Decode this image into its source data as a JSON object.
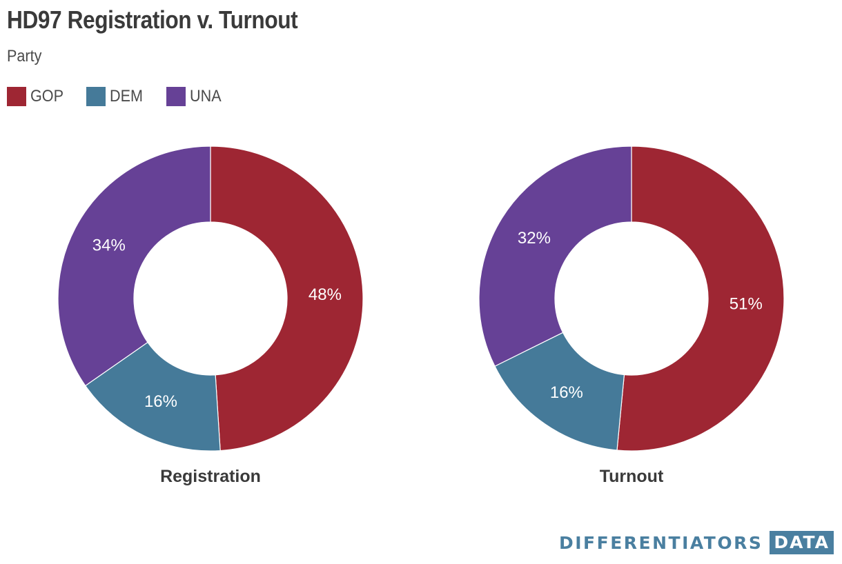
{
  "title": "HD97 Registration v. Turnout",
  "subtitle": "Party",
  "legend": [
    {
      "label": "GOP",
      "color": "#9e2633"
    },
    {
      "label": "DEM",
      "color": "#457a99"
    },
    {
      "label": "UNA",
      "color": "#664196"
    }
  ],
  "brand": {
    "name": "DIFFERENTIATORS",
    "box": "DATA"
  },
  "chart_data": [
    {
      "type": "pie",
      "title": "Registration",
      "categories": [
        "GOP",
        "DEM",
        "UNA"
      ],
      "values": [
        48,
        16,
        34
      ],
      "labels": [
        "48%",
        "16%",
        "34%"
      ],
      "colors": [
        "#9e2633",
        "#457a99",
        "#664196"
      ]
    },
    {
      "type": "pie",
      "title": "Turnout",
      "categories": [
        "GOP",
        "DEM",
        "UNA"
      ],
      "values": [
        51,
        16,
        32
      ],
      "labels": [
        "51%",
        "16%",
        "32%"
      ],
      "colors": [
        "#9e2633",
        "#457a99",
        "#664196"
      ]
    }
  ]
}
